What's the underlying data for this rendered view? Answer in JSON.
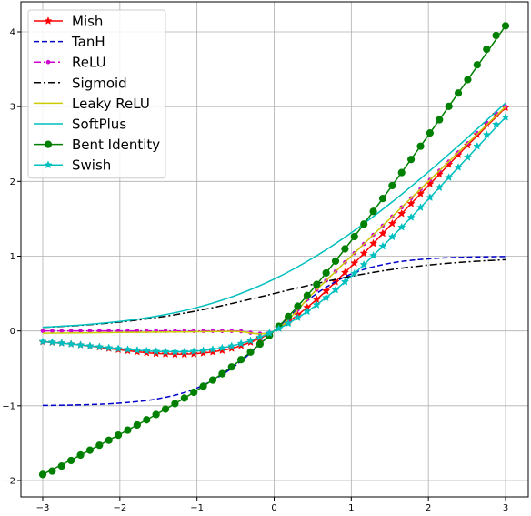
{
  "chart_data": {
    "type": "line",
    "title": "",
    "xlabel": "",
    "ylabel": "",
    "xlim": [
      -3.0,
      3.0
    ],
    "ylim": [
      -2.0,
      4.0
    ],
    "grid": true,
    "legend_position": "top-left",
    "x_ticks": [
      -3,
      -2,
      -1,
      0,
      1,
      2,
      3
    ],
    "y_ticks": [
      -2,
      -1,
      0,
      1,
      2,
      3,
      4
    ],
    "x_tick_labels": [
      "−3",
      "−2",
      "−1",
      "0",
      "1",
      "2",
      "3"
    ],
    "y_tick_labels": [
      "−2",
      "−1",
      "0",
      "1",
      "2",
      "3",
      "4"
    ],
    "x": [
      -3.0,
      -2.5,
      -2.0,
      -1.5,
      -1.0,
      -0.5,
      0.0,
      0.5,
      1.0,
      1.5,
      2.0,
      2.5,
      3.0
    ],
    "series": [
      {
        "name": "Mish",
        "color": "#ff0000",
        "linestyle": "solid",
        "marker": "star",
        "values": [
          -0.146,
          -0.189,
          -0.252,
          -0.303,
          -0.303,
          -0.219,
          0.0,
          0.375,
          0.865,
          1.404,
          1.944,
          2.474,
          2.987
        ]
      },
      {
        "name": "TanH",
        "color": "#0000cc",
        "linestyle": "dashed",
        "marker": "none",
        "values": [
          -0.995,
          -0.987,
          -0.964,
          -0.905,
          -0.762,
          -0.462,
          0.0,
          0.462,
          0.762,
          0.905,
          0.964,
          0.987,
          0.995
        ]
      },
      {
        "name": "ReLU",
        "color": "#cc00cc",
        "linestyle": "dashdot",
        "marker": "dot",
        "values": [
          0.0,
          0.0,
          0.0,
          0.0,
          0.0,
          0.0,
          0.0,
          0.5,
          1.0,
          1.5,
          2.0,
          2.5,
          3.0
        ]
      },
      {
        "name": "Sigmoid",
        "color": "#000000",
        "linestyle": "dashdot",
        "marker": "none",
        "values": [
          0.047,
          0.076,
          0.119,
          0.182,
          0.269,
          0.378,
          0.5,
          0.622,
          0.731,
          0.818,
          0.881,
          0.924,
          0.953
        ]
      },
      {
        "name": "Leaky ReLU",
        "color": "#cccc00",
        "linestyle": "solid",
        "marker": "none",
        "values": [
          -0.03,
          -0.025,
          -0.02,
          -0.015,
          -0.01,
          -0.005,
          0.0,
          0.5,
          1.0,
          1.5,
          2.0,
          2.5,
          3.0
        ]
      },
      {
        "name": "SoftPlus",
        "color": "#00bfbf",
        "linestyle": "solid",
        "marker": "none",
        "values": [
          0.049,
          0.079,
          0.127,
          0.201,
          0.313,
          0.474,
          0.693,
          0.974,
          1.313,
          1.701,
          2.127,
          2.579,
          3.049
        ]
      },
      {
        "name": "Bent Identity",
        "color": "#008000",
        "linestyle": "solid",
        "marker": "circle",
        "values": [
          -1.919,
          -1.654,
          -1.382,
          -1.099,
          -0.793,
          -0.441,
          0.0,
          0.559,
          1.207,
          1.901,
          2.618,
          3.346,
          4.081
        ]
      },
      {
        "name": "Swish",
        "color": "#00bfbf",
        "linestyle": "solid",
        "marker": "star",
        "values": [
          -0.142,
          -0.189,
          -0.238,
          -0.274,
          -0.269,
          -0.189,
          0.0,
          0.311,
          0.731,
          1.227,
          1.762,
          2.311,
          2.858
        ]
      }
    ]
  }
}
